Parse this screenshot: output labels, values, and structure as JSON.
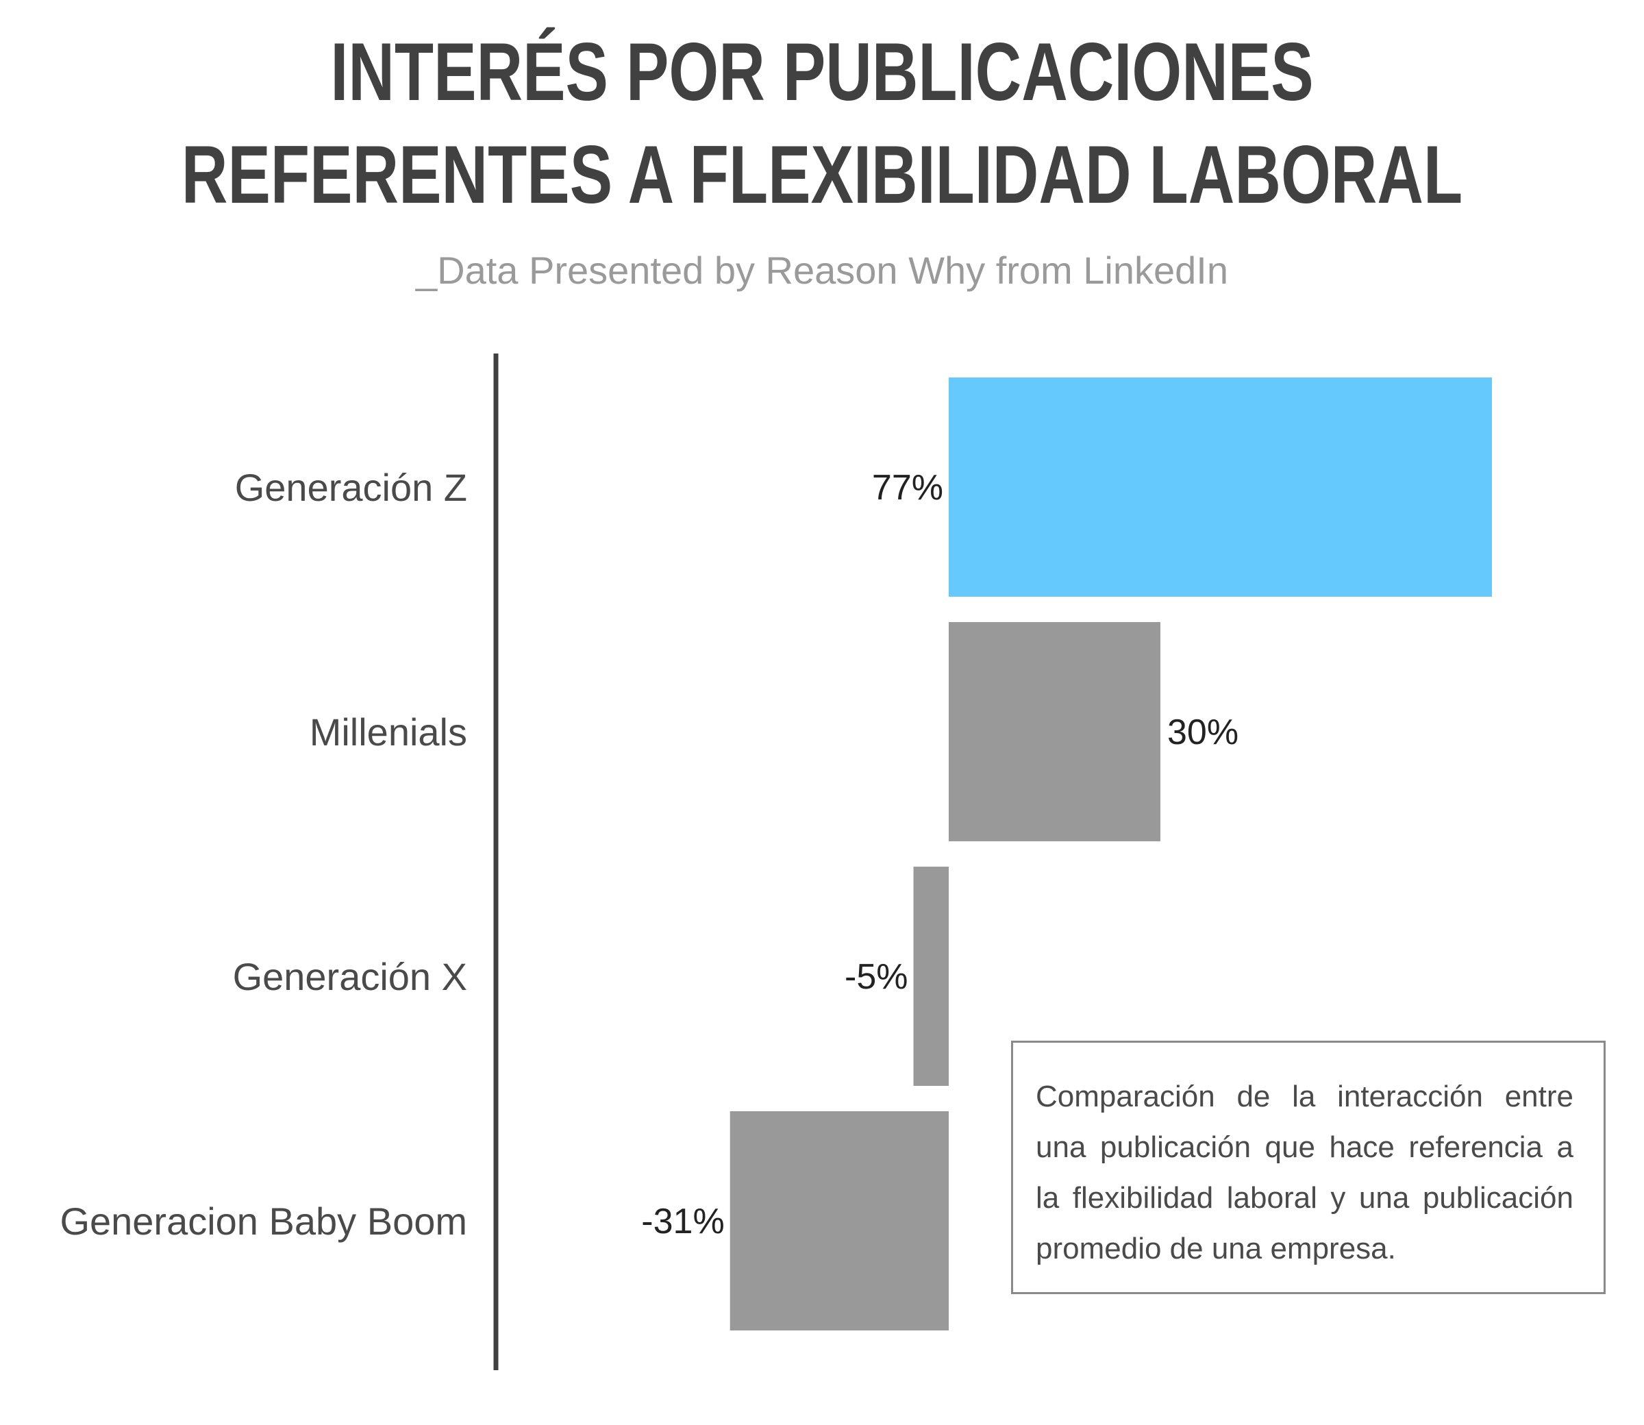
{
  "chart_data": {
    "type": "bar",
    "orientation": "horizontal",
    "title": "INTERÉS POR PUBLICACIONES REFERENTES A FLEXIBILIDAD LABORAL",
    "subtitle": "_Data Presented by Reason Why from LinkedIn",
    "categories": [
      "Generación Z",
      "Millenials",
      "Generación X",
      "Generacion Baby Boom"
    ],
    "values": [
      77,
      30,
      -5,
      -31
    ],
    "value_labels": [
      "77%",
      "30%",
      "-5%",
      "-31%"
    ],
    "bar_colors": [
      "#66c9fd",
      "#999999",
      "#999999",
      "#999999"
    ],
    "xlim": [
      -31,
      77
    ],
    "grid": false,
    "legend": "none"
  },
  "note": {
    "text": "Comparación de la interacción entre una publicación que hace referencia a la flexibilidad laboral y una publicación promedio de una empresa."
  },
  "colors": {
    "title": "#414141",
    "subtitle": "#9a9a9a",
    "axis": "#414141",
    "category_label": "#4a4a4a",
    "value_label": "#222222"
  }
}
